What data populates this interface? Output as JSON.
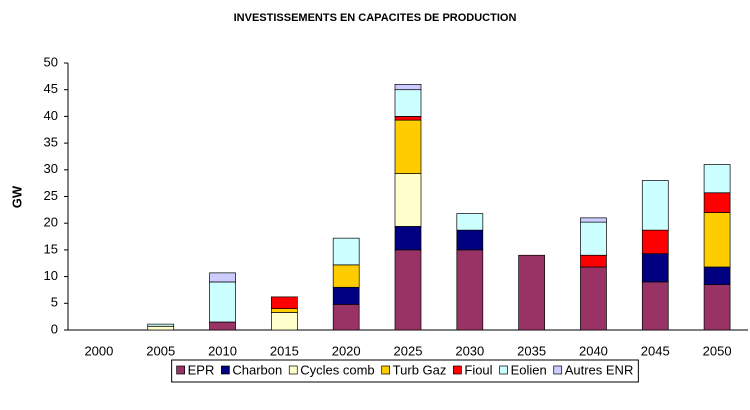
{
  "chart_data": {
    "type": "stacked_bar",
    "title": "INVESTISSEMENTS EN CAPACITES DE PRODUCTION",
    "y_label": "GW",
    "categories": [
      "2000",
      "2005",
      "2010",
      "2015",
      "2020",
      "2025",
      "2030",
      "2035",
      "2040",
      "2045",
      "2050"
    ],
    "series": [
      {
        "name": "EPR",
        "color": "#993366",
        "values": [
          0,
          0,
          1.5,
          0,
          4.8,
          15,
          15,
          14,
          11.8,
          9,
          8.5
        ]
      },
      {
        "name": "Charbon",
        "color": "#000080",
        "values": [
          0,
          0,
          0,
          0,
          3.2,
          4.4,
          3.7,
          0,
          0,
          5.3,
          3.3
        ]
      },
      {
        "name": "Cycles comb",
        "color": "#FFFFCC",
        "values": [
          0,
          0.7,
          0,
          3.3,
          0,
          9.9,
          0,
          0,
          0,
          0,
          0
        ]
      },
      {
        "name": "Turb Gaz",
        "color": "#FFCC00",
        "values": [
          0,
          0,
          0,
          0.7,
          4.2,
          10,
          0,
          0,
          0,
          0,
          10.2
        ]
      },
      {
        "name": "Fioul",
        "color": "#FF0000",
        "values": [
          0,
          0,
          0,
          2.2,
          0,
          0.7,
          0,
          0,
          2.2,
          4.4,
          3.7
        ]
      },
      {
        "name": "Eolien",
        "color": "#CCFFFF",
        "values": [
          0,
          0.4,
          7.5,
          0,
          5,
          5,
          3.1,
          0,
          6.2,
          9.3,
          5.3
        ]
      },
      {
        "name": "Autres ENR",
        "color": "#CCCCFF",
        "values": [
          0,
          0,
          1.7,
          0,
          0,
          1,
          0,
          0,
          0.8,
          0,
          0
        ]
      }
    ],
    "ylim": [
      0,
      50
    ],
    "yticks": [
      0,
      5,
      10,
      15,
      20,
      25,
      30,
      35,
      40,
      45,
      50
    ],
    "grid": false,
    "legend": "bottom"
  }
}
